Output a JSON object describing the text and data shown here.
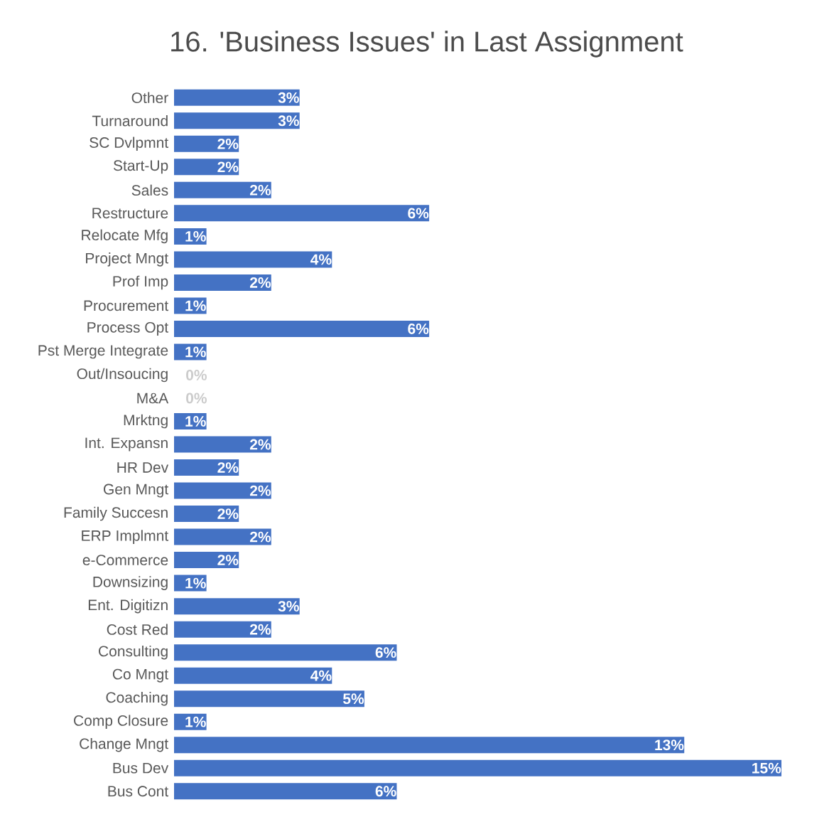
{
  "chart_data": {
    "type": "bar",
    "orientation": "horizontal",
    "title": "16. 'Business Issues' in Last Assignment",
    "categories": [
      "Other",
      "Turnaround",
      "SC Dvlpmnt",
      "Start-Up",
      "Sales",
      "Restructure",
      "Relocate Mfg",
      "Project Mngt",
      "Prof Imp",
      "Procurement",
      "Process Opt",
      "Pst Merge Integrate",
      "Out/Insoucing",
      "M&A",
      "Mrktng",
      "Int. Expansn",
      "HR Dev",
      "Gen Mngt",
      "Family Succesn",
      "ERP Implmnt",
      "e-Commerce",
      "Downsizing",
      "Ent. Digitizn",
      "Cost Red",
      "Consulting",
      "Co Mngt",
      "Coaching",
      "Comp Closure",
      "Change Mngt",
      "Bus Dev",
      "Bus Cont"
    ],
    "values": [
      3.1,
      3.1,
      1.6,
      1.6,
      2.4,
      6.3,
      0.8,
      3.9,
      2.4,
      0.8,
      6.3,
      0.8,
      0,
      0,
      0.8,
      2.4,
      1.6,
      2.4,
      1.6,
      2.4,
      1.6,
      0.8,
      3.1,
      2.4,
      5.5,
      3.9,
      4.7,
      0.8,
      12.6,
      15.0,
      5.5
    ],
    "value_labels": [
      "3%",
      "3%",
      "2%",
      "2%",
      "2%",
      "6%",
      "1%",
      "4%",
      "2%",
      "1%",
      "6%",
      "1%",
      "0%",
      "0%",
      "1%",
      "2%",
      "2%",
      "2%",
      "2%",
      "2%",
      "2%",
      "1%",
      "3%",
      "2%",
      "6%",
      "4%",
      "5%",
      "1%",
      "13%",
      "15%",
      "6%"
    ],
    "color": "#4472c4"
  }
}
